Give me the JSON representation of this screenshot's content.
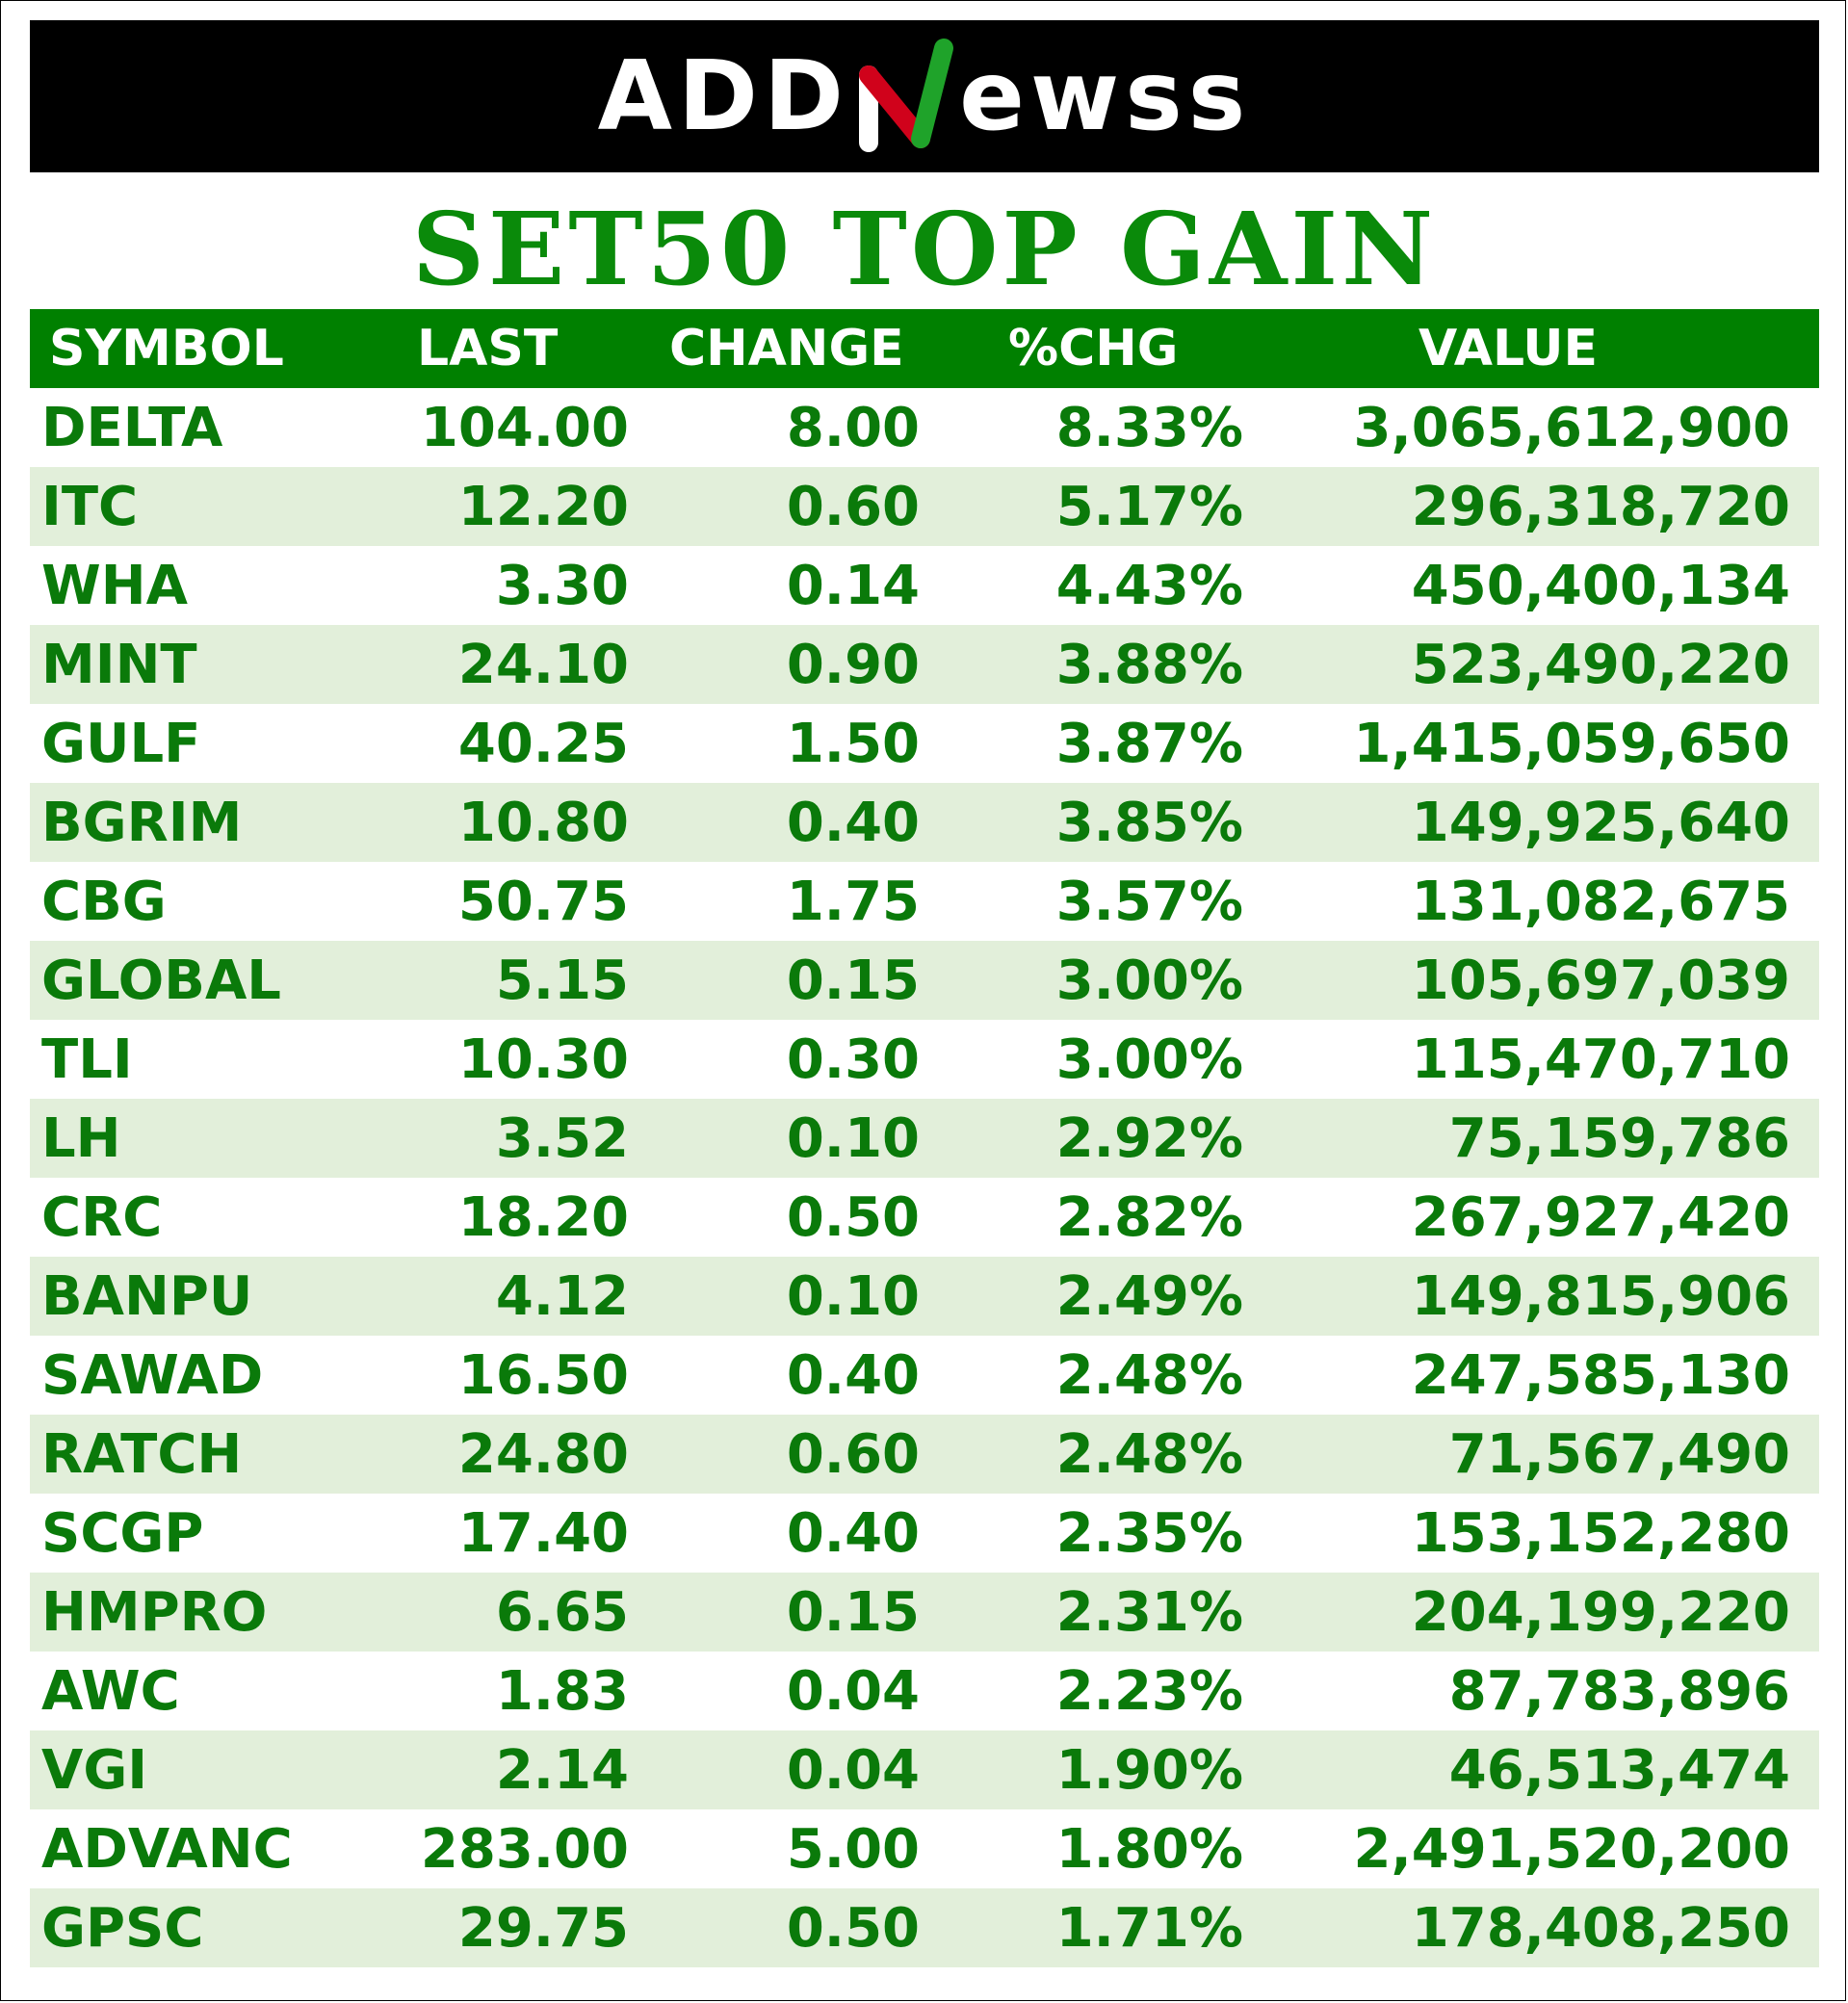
{
  "brand": {
    "logo_left": "ADD",
    "logo_right": "ewss",
    "logo_letter": "N"
  },
  "title": "SET50 TOP GAIN",
  "columns": {
    "symbol": "SYMBOL",
    "last": "LAST",
    "change": "CHANGE",
    "pct": "%CHG",
    "value": "VALUE"
  },
  "colors": {
    "header_bg": "#008000",
    "text_green": "#0a7a0a",
    "stripe": "#e2efda",
    "banner": "#000000"
  },
  "rows": [
    {
      "symbol": "DELTA",
      "last": "104.00",
      "change": "8.00",
      "pct": "8.33%",
      "value": "3,065,612,900"
    },
    {
      "symbol": "ITC",
      "last": "12.20",
      "change": "0.60",
      "pct": "5.17%",
      "value": "296,318,720"
    },
    {
      "symbol": "WHA",
      "last": "3.30",
      "change": "0.14",
      "pct": "4.43%",
      "value": "450,400,134"
    },
    {
      "symbol": "MINT",
      "last": "24.10",
      "change": "0.90",
      "pct": "3.88%",
      "value": "523,490,220"
    },
    {
      "symbol": "GULF",
      "last": "40.25",
      "change": "1.50",
      "pct": "3.87%",
      "value": "1,415,059,650"
    },
    {
      "symbol": "BGRIM",
      "last": "10.80",
      "change": "0.40",
      "pct": "3.85%",
      "value": "149,925,640"
    },
    {
      "symbol": "CBG",
      "last": "50.75",
      "change": "1.75",
      "pct": "3.57%",
      "value": "131,082,675"
    },
    {
      "symbol": "GLOBAL",
      "last": "5.15",
      "change": "0.15",
      "pct": "3.00%",
      "value": "105,697,039"
    },
    {
      "symbol": "TLI",
      "last": "10.30",
      "change": "0.30",
      "pct": "3.00%",
      "value": "115,470,710"
    },
    {
      "symbol": "LH",
      "last": "3.52",
      "change": "0.10",
      "pct": "2.92%",
      "value": "75,159,786"
    },
    {
      "symbol": "CRC",
      "last": "18.20",
      "change": "0.50",
      "pct": "2.82%",
      "value": "267,927,420"
    },
    {
      "symbol": "BANPU",
      "last": "4.12",
      "change": "0.10",
      "pct": "2.49%",
      "value": "149,815,906"
    },
    {
      "symbol": "SAWAD",
      "last": "16.50",
      "change": "0.40",
      "pct": "2.48%",
      "value": "247,585,130"
    },
    {
      "symbol": "RATCH",
      "last": "24.80",
      "change": "0.60",
      "pct": "2.48%",
      "value": "71,567,490"
    },
    {
      "symbol": "SCGP",
      "last": "17.40",
      "change": "0.40",
      "pct": "2.35%",
      "value": "153,152,280"
    },
    {
      "symbol": "HMPRO",
      "last": "6.65",
      "change": "0.15",
      "pct": "2.31%",
      "value": "204,199,220"
    },
    {
      "symbol": "AWC",
      "last": "1.83",
      "change": "0.04",
      "pct": "2.23%",
      "value": "87,783,896"
    },
    {
      "symbol": "VGI",
      "last": "2.14",
      "change": "0.04",
      "pct": "1.90%",
      "value": "46,513,474"
    },
    {
      "symbol": "ADVANC",
      "last": "283.00",
      "change": "5.00",
      "pct": "1.80%",
      "value": "2,491,520,200"
    },
    {
      "symbol": "GPSC",
      "last": "29.75",
      "change": "0.50",
      "pct": "1.71%",
      "value": "178,408,250"
    }
  ]
}
